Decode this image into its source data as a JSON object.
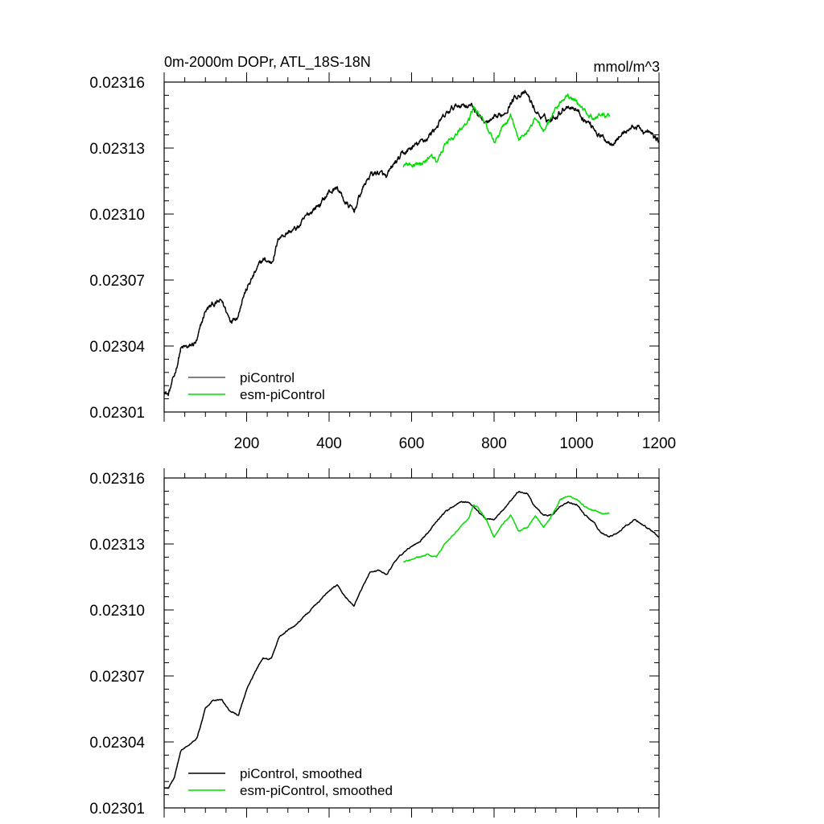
{
  "chart_data": [
    {
      "type": "line",
      "title": "0m-2000m DOPr, ATL_18S-18N",
      "units": "mmol/m^3",
      "xlim": [
        0,
        1200
      ],
      "ylim": [
        0.02301,
        0.02316
      ],
      "x_ticks": [
        200,
        400,
        600,
        800,
        1000,
        1200
      ],
      "x_tick_labels": [
        "200",
        "400",
        "600",
        "800",
        "1000",
        "1200"
      ],
      "y_ticks": [
        0.02301,
        0.02304,
        0.02307,
        0.0231,
        0.02313,
        0.02316
      ],
      "y_tick_labels": [
        "0.02301",
        "0.02304",
        "0.02307",
        "0.02310",
        "0.02313",
        "0.02316"
      ],
      "legend_position": "bottom-left",
      "series": [
        {
          "name": "piControl",
          "color": "#000000",
          "noise": 1.8e-06,
          "x": [
            0,
            10,
            25,
            40,
            60,
            80,
            100,
            120,
            140,
            160,
            180,
            190,
            200,
            220,
            240,
            260,
            280,
            300,
            320,
            340,
            360,
            380,
            400,
            420,
            440,
            460,
            480,
            500,
            520,
            540,
            560,
            580,
            600,
            620,
            640,
            660,
            680,
            700,
            720,
            740,
            760,
            780,
            800,
            820,
            840,
            860,
            880,
            900,
            920,
            940,
            960,
            980,
            1000,
            1020,
            1040,
            1060,
            1080,
            1100,
            1120,
            1140,
            1160,
            1180,
            1200
          ],
          "y": [
            0.02302,
            0.023018,
            0.023026,
            0.023039,
            0.023039,
            0.023042,
            0.023056,
            0.023059,
            0.02306,
            0.023052,
            0.023055,
            0.023063,
            0.023066,
            0.023073,
            0.023079,
            0.023078,
            0.02309,
            0.023092,
            0.023093,
            0.023097,
            0.023102,
            0.023105,
            0.02311,
            0.023112,
            0.023105,
            0.023101,
            0.023111,
            0.023118,
            0.023119,
            0.023116,
            0.023123,
            0.023127,
            0.02313,
            0.023132,
            0.023135,
            0.02314,
            0.023144,
            0.023148,
            0.02315,
            0.02315,
            0.023146,
            0.023141,
            0.023142,
            0.023145,
            0.023151,
            0.023155,
            0.023154,
            0.023147,
            0.023143,
            0.023143,
            0.023147,
            0.02315,
            0.023148,
            0.023143,
            0.02314,
            0.023135,
            0.023133,
            0.023135,
            0.023138,
            0.02314,
            0.023138,
            0.023136,
            0.023133
          ]
        },
        {
          "name": "esm-piControl",
          "color": "#00dd00",
          "noise": 1.5e-06,
          "x": [
            580,
            600,
            620,
            640,
            660,
            680,
            700,
            720,
            740,
            750,
            760,
            780,
            800,
            820,
            840,
            860,
            880,
            900,
            920,
            940,
            960,
            980,
            1000,
            1020,
            1040,
            1060,
            1080
          ],
          "y": [
            0.023122,
            0.023122,
            0.023123,
            0.023125,
            0.023124,
            0.023131,
            0.023134,
            0.023138,
            0.023143,
            0.023149,
            0.023146,
            0.02314,
            0.023132,
            0.02314,
            0.023144,
            0.023135,
            0.023137,
            0.023144,
            0.023138,
            0.023143,
            0.023151,
            0.023153,
            0.023151,
            0.023147,
            0.023144,
            0.023144,
            0.023144
          ]
        }
      ]
    },
    {
      "type": "line",
      "title": "",
      "xlim": [
        0,
        1200
      ],
      "ylim": [
        0.02301,
        0.02316
      ],
      "y_ticks": [
        0.02301,
        0.02304,
        0.02307,
        0.0231,
        0.02313,
        0.02316
      ],
      "y_tick_labels": [
        "0.02301",
        "0.02304",
        "0.02307",
        "0.02310",
        "0.02313",
        "0.02316"
      ],
      "legend_position": "bottom-left",
      "series": [
        {
          "name": "piControl, smoothed",
          "color": "#000000",
          "noise": 4e-07,
          "x": [
            0,
            10,
            25,
            40,
            60,
            80,
            100,
            120,
            140,
            160,
            180,
            190,
            200,
            220,
            240,
            260,
            280,
            300,
            320,
            340,
            360,
            380,
            400,
            420,
            440,
            460,
            480,
            500,
            520,
            540,
            560,
            580,
            600,
            620,
            640,
            660,
            680,
            700,
            720,
            740,
            760,
            780,
            800,
            820,
            840,
            860,
            880,
            900,
            920,
            940,
            960,
            980,
            1000,
            1020,
            1040,
            1060,
            1080,
            1100,
            1120,
            1140,
            1160,
            1180,
            1200
          ],
          "y": [
            0.023019,
            0.023019,
            0.023024,
            0.023036,
            0.023039,
            0.023042,
            0.023055,
            0.023059,
            0.023059,
            0.023054,
            0.023052,
            0.023058,
            0.023064,
            0.023072,
            0.023078,
            0.023078,
            0.023088,
            0.023091,
            0.023093,
            0.023097,
            0.023101,
            0.023105,
            0.023109,
            0.023111,
            0.023106,
            0.023102,
            0.02311,
            0.023117,
            0.023118,
            0.023116,
            0.023122,
            0.023126,
            0.023129,
            0.023131,
            0.023135,
            0.02314,
            0.023144,
            0.023147,
            0.023149,
            0.023149,
            0.023145,
            0.023141,
            0.023141,
            0.023145,
            0.02315,
            0.023154,
            0.023153,
            0.023147,
            0.023143,
            0.023143,
            0.023147,
            0.023149,
            0.023148,
            0.023143,
            0.02314,
            0.023135,
            0.023133,
            0.023135,
            0.023138,
            0.023141,
            0.023139,
            0.023136,
            0.023133
          ]
        },
        {
          "name": "esm-piControl, smoothed",
          "color": "#00dd00",
          "noise": 4e-07,
          "x": [
            580,
            600,
            620,
            640,
            660,
            680,
            700,
            720,
            740,
            750,
            760,
            780,
            800,
            820,
            840,
            860,
            880,
            900,
            920,
            940,
            960,
            980,
            1000,
            1020,
            1040,
            1060,
            1080
          ],
          "y": [
            0.023122,
            0.023123,
            0.023124,
            0.023125,
            0.023124,
            0.02313,
            0.023134,
            0.023138,
            0.023142,
            0.023148,
            0.023147,
            0.023141,
            0.023133,
            0.023139,
            0.023143,
            0.023136,
            0.023137,
            0.023143,
            0.023138,
            0.023143,
            0.02315,
            0.023152,
            0.02315,
            0.023147,
            0.023145,
            0.023144,
            0.023144
          ]
        }
      ]
    }
  ]
}
